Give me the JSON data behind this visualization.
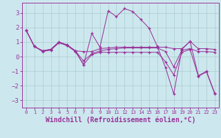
{
  "background_color": "#cce8ee",
  "grid_color": "#aacccc",
  "line_color": "#993399",
  "xlabel": "Windchill (Refroidissement éolien,°C)",
  "xlim": [
    -0.5,
    23.5
  ],
  "ylim": [
    -3.5,
    3.7
  ],
  "xticks": [
    0,
    1,
    2,
    3,
    4,
    5,
    6,
    7,
    8,
    9,
    10,
    11,
    12,
    13,
    14,
    15,
    16,
    17,
    18,
    19,
    20,
    21,
    22,
    23
  ],
  "yticks": [
    -3,
    -2,
    -1,
    0,
    1,
    2,
    3
  ],
  "series1_x": [
    0,
    1,
    2,
    3,
    4,
    5,
    6,
    7,
    8,
    9,
    10,
    11,
    12,
    13,
    14,
    15,
    16,
    17,
    18,
    19,
    20,
    21,
    22,
    23
  ],
  "series1_y": [
    1.8,
    0.7,
    0.4,
    0.5,
    1.0,
    0.8,
    0.4,
    -0.55,
    1.6,
    0.65,
    3.15,
    2.75,
    3.3,
    3.1,
    2.55,
    1.95,
    0.7,
    -0.75,
    -2.55,
    0.5,
    1.05,
    -1.3,
    -1.0,
    -2.5
  ],
  "series2_x": [
    0,
    1,
    2,
    3,
    4,
    5,
    6,
    7,
    8,
    9,
    10,
    11,
    12,
    13,
    14,
    15,
    16,
    17,
    18,
    19,
    20,
    21,
    22,
    23
  ],
  "series2_y": [
    1.8,
    0.7,
    0.4,
    0.5,
    1.0,
    0.8,
    0.4,
    0.35,
    0.35,
    0.55,
    0.6,
    0.65,
    0.65,
    0.65,
    0.65,
    0.65,
    0.65,
    0.65,
    0.55,
    0.55,
    1.05,
    0.55,
    0.55,
    0.5
  ],
  "series3_x": [
    0,
    1,
    2,
    3,
    4,
    5,
    6,
    7,
    8,
    9,
    10,
    11,
    12,
    13,
    14,
    15,
    16,
    17,
    18,
    19,
    20,
    21,
    22,
    23
  ],
  "series3_y": [
    1.8,
    0.7,
    0.4,
    0.5,
    1.0,
    0.8,
    0.4,
    -0.3,
    0.2,
    0.4,
    0.5,
    0.55,
    0.6,
    0.6,
    0.6,
    0.6,
    0.6,
    0.35,
    -0.7,
    0.45,
    0.55,
    0.35,
    0.35,
    0.3
  ],
  "series4_x": [
    0,
    1,
    2,
    3,
    4,
    5,
    6,
    7,
    8,
    9,
    10,
    11,
    12,
    13,
    14,
    15,
    16,
    17,
    18,
    19,
    20,
    21,
    22,
    23
  ],
  "series4_y": [
    1.8,
    0.7,
    0.35,
    0.45,
    0.95,
    0.75,
    0.35,
    -0.55,
    0.15,
    0.3,
    0.3,
    0.3,
    0.3,
    0.3,
    0.3,
    0.3,
    0.3,
    -0.35,
    -1.25,
    0.3,
    0.5,
    -1.35,
    -1.05,
    -2.55
  ]
}
